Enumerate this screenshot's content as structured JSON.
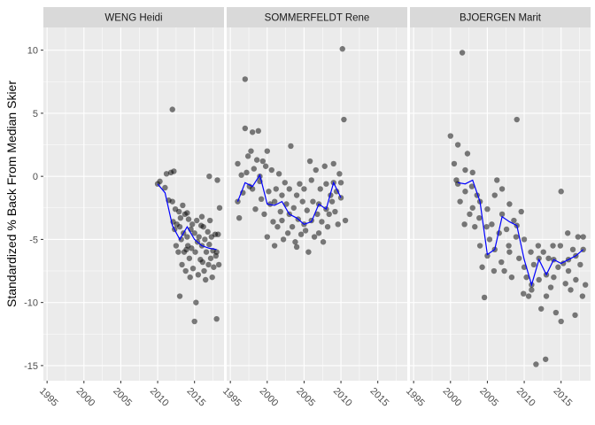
{
  "chart_data": {
    "type": "scatter",
    "title": "",
    "xlabel": "",
    "ylabel": "Standardized % Back From Median Skier",
    "xlim": [
      1994.5,
      2019
    ],
    "ylim": [
      -16.2,
      11.8
    ],
    "x_ticks": [
      1995,
      2000,
      2005,
      2010,
      2015
    ],
    "x_tick_labels": [
      "1995",
      "2000",
      "2005",
      "2010",
      "2015"
    ],
    "y_ticks": [
      10,
      5,
      0,
      -5,
      -10,
      -15
    ],
    "y_tick_labels": [
      "10",
      "5",
      "0",
      "-5",
      "-10",
      "-15"
    ],
    "grid": true,
    "legend": "none",
    "colors": {
      "panel_background": "#ebebeb",
      "strip_background": "#d9d9d9",
      "grid_major": "#ffffff",
      "points": "#000000",
      "trend_line": "#0000ff"
    },
    "panels": [
      {
        "name": "WENG Heidi",
        "trend": {
          "x": [
            2010,
            2011,
            2012,
            2013,
            2014,
            2015,
            2016,
            2017,
            2018
          ],
          "y": [
            -0.6,
            -1.3,
            -3.9,
            -5.0,
            -4.0,
            -5.0,
            -5.5,
            -5.7,
            -5.8
          ]
        },
        "points": {
          "x": [
            2010,
            2010.3,
            2011,
            2011.2,
            2011.5,
            2011.8,
            2012,
            2012,
            2012.1,
            2012.2,
            2012.3,
            2012.4,
            2012.5,
            2012.6,
            2012.8,
            2012.9,
            2013,
            2013,
            2013.1,
            2013.2,
            2013.3,
            2013.4,
            2013.5,
            2013.6,
            2013.7,
            2013.8,
            2013.9,
            2014,
            2014,
            2014.1,
            2014.2,
            2014.3,
            2014.4,
            2014.5,
            2014.6,
            2014.7,
            2014.8,
            2015,
            2015,
            2015.1,
            2015.2,
            2015.3,
            2015.4,
            2015.5,
            2015.6,
            2015.8,
            2015.9,
            2016,
            2016,
            2016.1,
            2016.2,
            2016.3,
            2016.4,
            2016.5,
            2016.6,
            2016.8,
            2016.9,
            2017,
            2017,
            2017.1,
            2017.2,
            2017.3,
            2017.4,
            2017.5,
            2017.6,
            2017.8,
            2017.9,
            2018,
            2018,
            2018.1,
            2018.2,
            2018.3,
            2018.4
          ],
          "y": [
            -0.6,
            -0.4,
            -0.9,
            0.2,
            -1.9,
            0.3,
            5.3,
            -2.0,
            -3.6,
            0.4,
            -4.2,
            -2.6,
            -5.5,
            -3.8,
            -6.0,
            -2.8,
            -4.0,
            -9.5,
            -3.3,
            -5.0,
            -7.0,
            -2.3,
            -4.5,
            -6.0,
            -3.0,
            -7.5,
            -5.8,
            -4.8,
            -2.9,
            -5.5,
            -3.4,
            -6.5,
            -8.0,
            -4.2,
            -5.7,
            -3.8,
            -7.3,
            -4.5,
            -11.5,
            -6.0,
            -10.0,
            -3.5,
            -5.2,
            -7.8,
            -4.8,
            -6.6,
            -3.9,
            -5.5,
            -3.2,
            -6.8,
            -4.0,
            -7.5,
            -5.0,
            -8.2,
            -6.0,
            -4.4,
            -7.0,
            -5.4,
            0.0,
            -3.5,
            -6.5,
            -4.8,
            -8.0,
            -5.9,
            -7.2,
            -4.6,
            -6.3,
            -6.0,
            -11.3,
            -0.3,
            -4.6,
            -7.0,
            -2.5
          ]
        }
      },
      {
        "name": "SOMMERFELDT Rene",
        "trend": {
          "x": [
            1996,
            1997,
            1998,
            1999,
            2000,
            2001,
            2002,
            2003,
            2004,
            2005,
            2006,
            2007,
            2008,
            2009,
            2010
          ],
          "y": [
            -2.0,
            -0.5,
            -0.8,
            0.1,
            -2.2,
            -2.3,
            -2.0,
            -3.0,
            -3.3,
            -3.8,
            -3.6,
            -2.2,
            -2.6,
            -0.5,
            -1.7
          ]
        },
        "points": {
          "x": [
            1996,
            1996,
            1996.2,
            1996.5,
            1996.7,
            1997,
            1997,
            1997.2,
            1997.4,
            1997.6,
            1997.8,
            1998,
            1998,
            1998.2,
            1998.4,
            1998.6,
            1998.8,
            1999,
            1999,
            1999.2,
            1999.4,
            1999.6,
            1999.8,
            2000,
            2000,
            2000.2,
            2000.4,
            2000.6,
            2000.8,
            2001,
            2001,
            2001.2,
            2001.4,
            2001.6,
            2001.8,
            2002,
            2002,
            2002.2,
            2002.4,
            2002.6,
            2002.8,
            2003,
            2003,
            2003.2,
            2003.4,
            2003.6,
            2003.8,
            2004,
            2004,
            2004.2,
            2004.4,
            2004.6,
            2004.8,
            2005,
            2005,
            2005.2,
            2005.4,
            2005.6,
            2005.8,
            2006,
            2006,
            2006.2,
            2006.4,
            2006.6,
            2006.8,
            2007,
            2007,
            2007.2,
            2007.4,
            2007.6,
            2007.8,
            2008,
            2008,
            2008.2,
            2008.4,
            2008.6,
            2008.8,
            2009,
            2009,
            2009.2,
            2009.4,
            2009.6,
            2009.8,
            2010,
            2010,
            2010.2,
            2010.4,
            2010.6
          ],
          "y": [
            1.0,
            -2.0,
            -3.3,
            0.1,
            -1.3,
            7.7,
            3.8,
            0.3,
            1.6,
            -0.8,
            2.0,
            3.5,
            -1.0,
            0.6,
            -2.6,
            1.3,
            3.6,
            0.0,
            -0.4,
            -1.8,
            1.2,
            -3.0,
            0.8,
            2.0,
            -4.8,
            -1.2,
            -2.2,
            0.5,
            -3.6,
            -5.5,
            -2.0,
            -1.0,
            -4.0,
            0.2,
            -2.8,
            -3.5,
            -1.5,
            -5.0,
            -0.5,
            -2.2,
            -4.5,
            -3.0,
            -1.0,
            2.4,
            -4.0,
            -2.5,
            -5.2,
            -5.6,
            -1.5,
            -3.4,
            -0.6,
            -4.6,
            -2.0,
            -3.8,
            -1.0,
            -4.3,
            -2.7,
            -6.0,
            1.2,
            -3.5,
            -0.3,
            -2.0,
            -4.8,
            0.5,
            -3.0,
            -2.2,
            -4.5,
            -1.0,
            -3.6,
            -5.2,
            0.8,
            -2.6,
            -0.6,
            -4.0,
            -3.0,
            -1.5,
            -2.0,
            -0.5,
            1.0,
            -2.8,
            -1.2,
            -3.8,
            0.2,
            -1.7,
            -0.5,
            10.1,
            4.5,
            -3.5
          ]
        }
      },
      {
        "name": "BJOERGEN Marit",
        "trend": {
          "x": [
            2001,
            2002,
            2003,
            2004,
            2005,
            2006,
            2007,
            2008,
            2009,
            2010,
            2011,
            2012,
            2013,
            2014,
            2015,
            2016,
            2017,
            2018
          ],
          "y": [
            -0.5,
            -0.6,
            -0.3,
            -2.0,
            -6.2,
            -5.8,
            -3.2,
            -3.6,
            -3.9,
            -6.6,
            -8.6,
            -6.6,
            -7.8,
            -6.6,
            -6.9,
            -6.6,
            -6.3,
            -5.8
          ]
        },
        "points": {
          "x": [
            2000,
            2000.5,
            2000.8,
            2001,
            2001,
            2001.3,
            2001.6,
            2001.9,
            2002,
            2002,
            2002.3,
            2002.6,
            2002.9,
            2003,
            2003,
            2003.3,
            2003.6,
            2003.9,
            2004,
            2004,
            2004.3,
            2004.6,
            2004.9,
            2005,
            2005,
            2005.3,
            2005.6,
            2005.9,
            2006,
            2006,
            2006.3,
            2006.6,
            2006.9,
            2007,
            2007,
            2007.3,
            2007.6,
            2007.9,
            2008,
            2008,
            2008.3,
            2008.6,
            2008.9,
            2009,
            2009,
            2009.3,
            2009.6,
            2009.9,
            2010,
            2010,
            2010.3,
            2010.6,
            2010.9,
            2011,
            2011,
            2011.3,
            2011.6,
            2011.9,
            2012,
            2012,
            2012.3,
            2012.6,
            2012.9,
            2013,
            2013,
            2013.3,
            2013.6,
            2013.9,
            2014,
            2014,
            2014.3,
            2014.6,
            2014.9,
            2015,
            2015,
            2015.3,
            2015.6,
            2015.9,
            2016,
            2016,
            2016.3,
            2016.6,
            2016.9,
            2017,
            2017,
            2017.3,
            2017.6,
            2017.9,
            2018,
            2018,
            2018.3
          ],
          "y": [
            3.2,
            1.0,
            -0.3,
            2.5,
            -0.6,
            -2.0,
            9.8,
            -3.8,
            0.5,
            -1.2,
            1.8,
            -3.0,
            -0.8,
            -2.5,
            0.3,
            -4.0,
            -1.5,
            -3.3,
            -2.0,
            -5.5,
            -7.2,
            -9.6,
            -4.0,
            -6.3,
            -2.6,
            -5.0,
            -3.8,
            -7.5,
            -1.5,
            -5.8,
            -0.3,
            -4.5,
            -6.8,
            -3.0,
            -1.0,
            -7.5,
            -4.2,
            -5.5,
            -2.2,
            -6.0,
            -8.0,
            -3.5,
            -4.8,
            4.5,
            -3.9,
            -6.5,
            -2.8,
            -9.3,
            -7.2,
            -5.0,
            -8.0,
            -9.5,
            -6.0,
            -8.6,
            -9.0,
            -7.0,
            -14.9,
            -5.5,
            -6.5,
            -8.2,
            -10.5,
            -6.0,
            -14.5,
            -7.8,
            -9.5,
            -6.5,
            -8.8,
            -5.5,
            -6.6,
            -8.0,
            -10.8,
            -7.2,
            -5.5,
            -1.2,
            -11.5,
            -6.9,
            -8.5,
            -4.5,
            -6.6,
            -7.5,
            -9.0,
            -5.8,
            -11.0,
            -6.3,
            -8.2,
            -4.8,
            -7.0,
            -9.5,
            -5.8,
            -4.8,
            -8.6
          ]
        }
      }
    ]
  }
}
